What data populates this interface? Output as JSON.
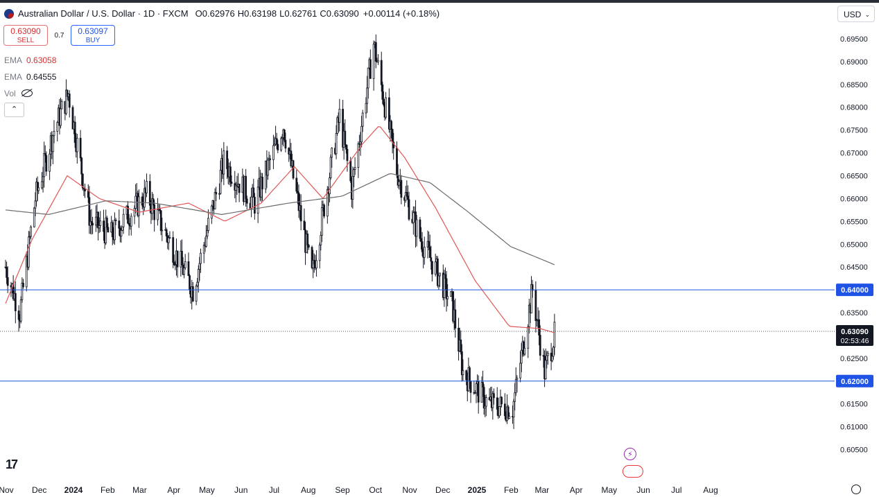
{
  "header": {
    "title": "Australian Dollar / U.S. Dollar · 1D · FXCM",
    "open_label": "O",
    "open": "0.62976",
    "high_label": "H",
    "high": "0.63198",
    "low_label": "L",
    "low": "0.62761",
    "close_label": "C",
    "close": "0.63090",
    "change": "+0.00114 (+0.18%)"
  },
  "trade": {
    "sell_price": "0.63090",
    "sell_label": "SELL",
    "spread": "0.7",
    "buy_price": "0.63097",
    "buy_label": "BUY"
  },
  "indicators": {
    "ema1_label": "EMA",
    "ema1_value": "0.63058",
    "ema2_label": "EMA",
    "ema2_value": "0.64555",
    "vol_label": "Vol"
  },
  "currency": "USD",
  "colors": {
    "candle": "#131722",
    "ema_fast": "#e05656",
    "ema_slow": "#6b6b6b",
    "level_line": "#1e53e5",
    "level_label_bg": "#1e53e5",
    "price_label_bg": "#131722"
  },
  "icons": [
    "flag-icon",
    "eye-off-icon",
    "chevron-up-icon",
    "chevron-down-icon",
    "lightning-icon",
    "us-flag-event-icon",
    "gear-icon",
    "tradingview-logo"
  ],
  "chart_data": {
    "type": "candlestick",
    "x_axis_labels": [
      "Nov",
      "Dec",
      "2024",
      "Feb",
      "Mar",
      "Apr",
      "May",
      "Jun",
      "Jul",
      "Aug",
      "Sep",
      "Oct",
      "Nov",
      "Dec",
      "2025",
      "Feb",
      "Mar",
      "Apr",
      "May",
      "Jun",
      "Jul",
      "Aug"
    ],
    "y_axis_labels": [
      "0.69500",
      "0.69000",
      "0.68500",
      "0.68000",
      "0.67500",
      "0.67000",
      "0.66500",
      "0.66000",
      "0.65500",
      "0.65000",
      "0.64500",
      "0.64000",
      "0.63500",
      "0.63000",
      "0.62500",
      "0.62000",
      "0.61500",
      "0.61000",
      "0.60500"
    ],
    "ylim": [
      0.6025,
      0.6975
    ],
    "horizontal_levels": [
      {
        "value": 0.64,
        "label": "0.64000"
      },
      {
        "value": 0.62,
        "label": "0.62000"
      }
    ],
    "current_price": {
      "value": 0.6309,
      "label": "0.63090",
      "countdown": "02:53:46"
    },
    "price_anchors": [
      {
        "date": "2023-11-01",
        "price": 0.645
      },
      {
        "date": "2023-11-14",
        "price": 0.635
      },
      {
        "date": "2023-11-28",
        "price": 0.66
      },
      {
        "date": "2023-12-15",
        "price": 0.675
      },
      {
        "date": "2023-12-28",
        "price": 0.683
      },
      {
        "date": "2024-01-17",
        "price": 0.655
      },
      {
        "date": "2024-02-05",
        "price": 0.652
      },
      {
        "date": "2024-03-08",
        "price": 0.661
      },
      {
        "date": "2024-04-19",
        "price": 0.64
      },
      {
        "date": "2024-05-17",
        "price": 0.668
      },
      {
        "date": "2024-06-14",
        "price": 0.659
      },
      {
        "date": "2024-07-10",
        "price": 0.676
      },
      {
        "date": "2024-08-05",
        "price": 0.643
      },
      {
        "date": "2024-08-30",
        "price": 0.678
      },
      {
        "date": "2024-09-10",
        "price": 0.662
      },
      {
        "date": "2024-09-30",
        "price": 0.694
      },
      {
        "date": "2024-10-21",
        "price": 0.666
      },
      {
        "date": "2024-11-10",
        "price": 0.652
      },
      {
        "date": "2024-12-10",
        "price": 0.637
      },
      {
        "date": "2024-12-20",
        "price": 0.622
      },
      {
        "date": "2025-01-12",
        "price": 0.615
      },
      {
        "date": "2025-02-03",
        "price": 0.614
      },
      {
        "date": "2025-02-21",
        "price": 0.64
      },
      {
        "date": "2025-03-04",
        "price": 0.622
      },
      {
        "date": "2025-03-13",
        "price": 0.63
      }
    ],
    "ema_fast_anchors": [
      {
        "date": "2023-11-01",
        "price": 0.637
      },
      {
        "date": "2023-11-25",
        "price": 0.651
      },
      {
        "date": "2023-12-27",
        "price": 0.665
      },
      {
        "date": "2024-01-25",
        "price": 0.66
      },
      {
        "date": "2024-03-01",
        "price": 0.657
      },
      {
        "date": "2024-04-15",
        "price": 0.659
      },
      {
        "date": "2024-05-18",
        "price": 0.655
      },
      {
        "date": "2024-06-20",
        "price": 0.659
      },
      {
        "date": "2024-07-20",
        "price": 0.667
      },
      {
        "date": "2024-08-15",
        "price": 0.66
      },
      {
        "date": "2024-09-20",
        "price": 0.672
      },
      {
        "date": "2024-10-05",
        "price": 0.676
      },
      {
        "date": "2024-10-28",
        "price": 0.669
      },
      {
        "date": "2024-11-25",
        "price": 0.658
      },
      {
        "date": "2024-12-31",
        "price": 0.642
      },
      {
        "date": "2025-01-31",
        "price": 0.632
      },
      {
        "date": "2025-02-28",
        "price": 0.6315
      },
      {
        "date": "2025-03-13",
        "price": 0.6306
      }
    ],
    "ema_slow_anchors": [
      {
        "date": "2023-11-01",
        "price": 0.6575
      },
      {
        "date": "2023-12-10",
        "price": 0.6565
      },
      {
        "date": "2024-01-31",
        "price": 0.6595
      },
      {
        "date": "2024-03-15",
        "price": 0.659
      },
      {
        "date": "2024-05-15",
        "price": 0.6565
      },
      {
        "date": "2024-07-15",
        "price": 0.659
      },
      {
        "date": "2024-09-01",
        "price": 0.6605
      },
      {
        "date": "2024-10-15",
        "price": 0.6655
      },
      {
        "date": "2024-11-20",
        "price": 0.6635
      },
      {
        "date": "2024-12-25",
        "price": 0.657
      },
      {
        "date": "2025-02-01",
        "price": 0.6495
      },
      {
        "date": "2025-03-13",
        "price": 0.6455
      }
    ]
  }
}
